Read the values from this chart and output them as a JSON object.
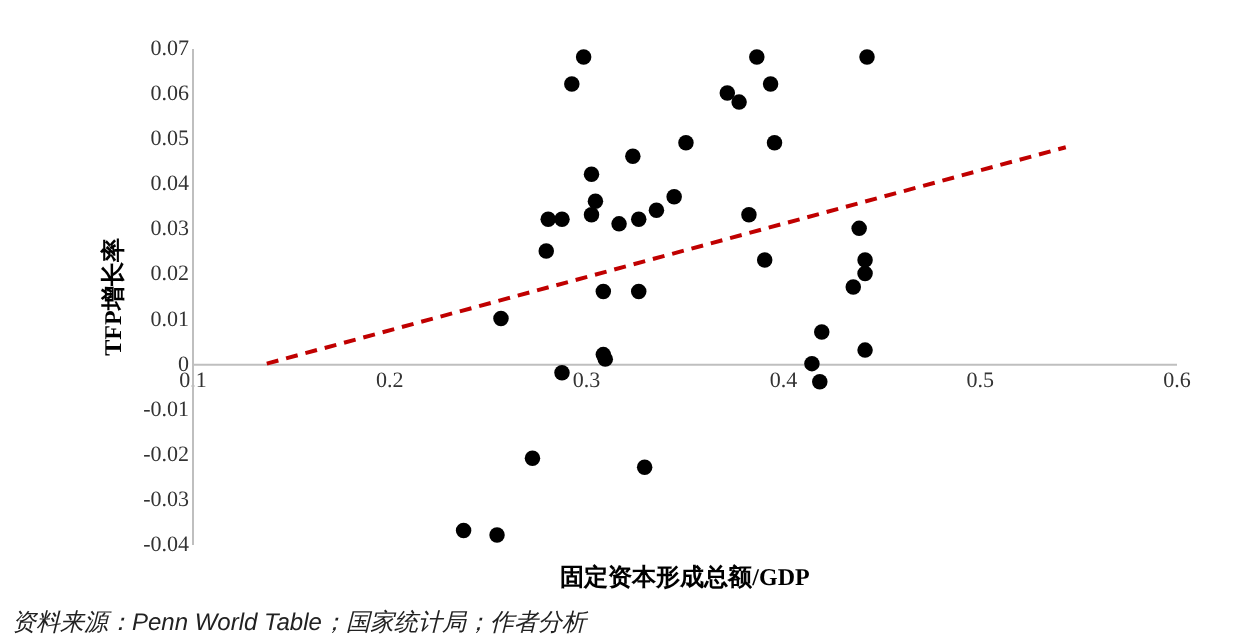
{
  "chart_data": {
    "type": "scatter",
    "xlabel": "固定资本形成总额/GDP",
    "ylabel": "TFP增长率",
    "xlim": [
      0.1,
      0.6
    ],
    "ylim": [
      -0.04,
      0.07
    ],
    "xticks": [
      0.1,
      0.2,
      0.3,
      0.4,
      0.5,
      0.6
    ],
    "yticks": [
      -0.04,
      -0.03,
      -0.02,
      -0.01,
      0,
      0.01,
      0.02,
      0.03,
      0.04,
      0.05,
      0.06,
      0.07
    ],
    "annotations": [
      "资料来源：Penn World Table；国家统计局；作者分析"
    ],
    "series": [
      {
        "type": "scatter",
        "marker": "circle",
        "color": "#000000",
        "x": [
          0.299,
          0.293,
          0.387,
          0.443,
          0.372,
          0.378,
          0.394,
          0.396,
          0.351,
          0.324,
          0.303,
          0.305,
          0.303,
          0.288,
          0.317,
          0.327,
          0.336,
          0.345,
          0.383,
          0.391,
          0.309,
          0.327,
          0.309,
          0.31,
          0.288,
          0.33,
          0.42,
          0.415,
          0.419,
          0.439,
          0.442,
          0.442,
          0.436,
          0.442,
          0.281,
          0.28,
          0.257,
          0.273,
          0.238,
          0.255
        ],
        "values": [
          0.068,
          0.062,
          0.068,
          0.068,
          0.06,
          0.058,
          0.062,
          0.049,
          0.049,
          0.046,
          0.042,
          0.036,
          0.033,
          0.032,
          0.031,
          0.032,
          0.034,
          0.037,
          0.033,
          0.023,
          0.016,
          0.016,
          0.002,
          0.001,
          -0.002,
          -0.023,
          0.007,
          0.0,
          -0.004,
          0.03,
          0.023,
          0.02,
          0.017,
          0.003,
          0.032,
          0.025,
          0.01,
          -0.021,
          -0.037,
          -0.038
        ]
      },
      {
        "type": "line",
        "color": "#c00000",
        "line_style": "dashed",
        "x": [
          0.138,
          0.544
        ],
        "values": [
          0,
          0.048
        ]
      }
    ]
  }
}
